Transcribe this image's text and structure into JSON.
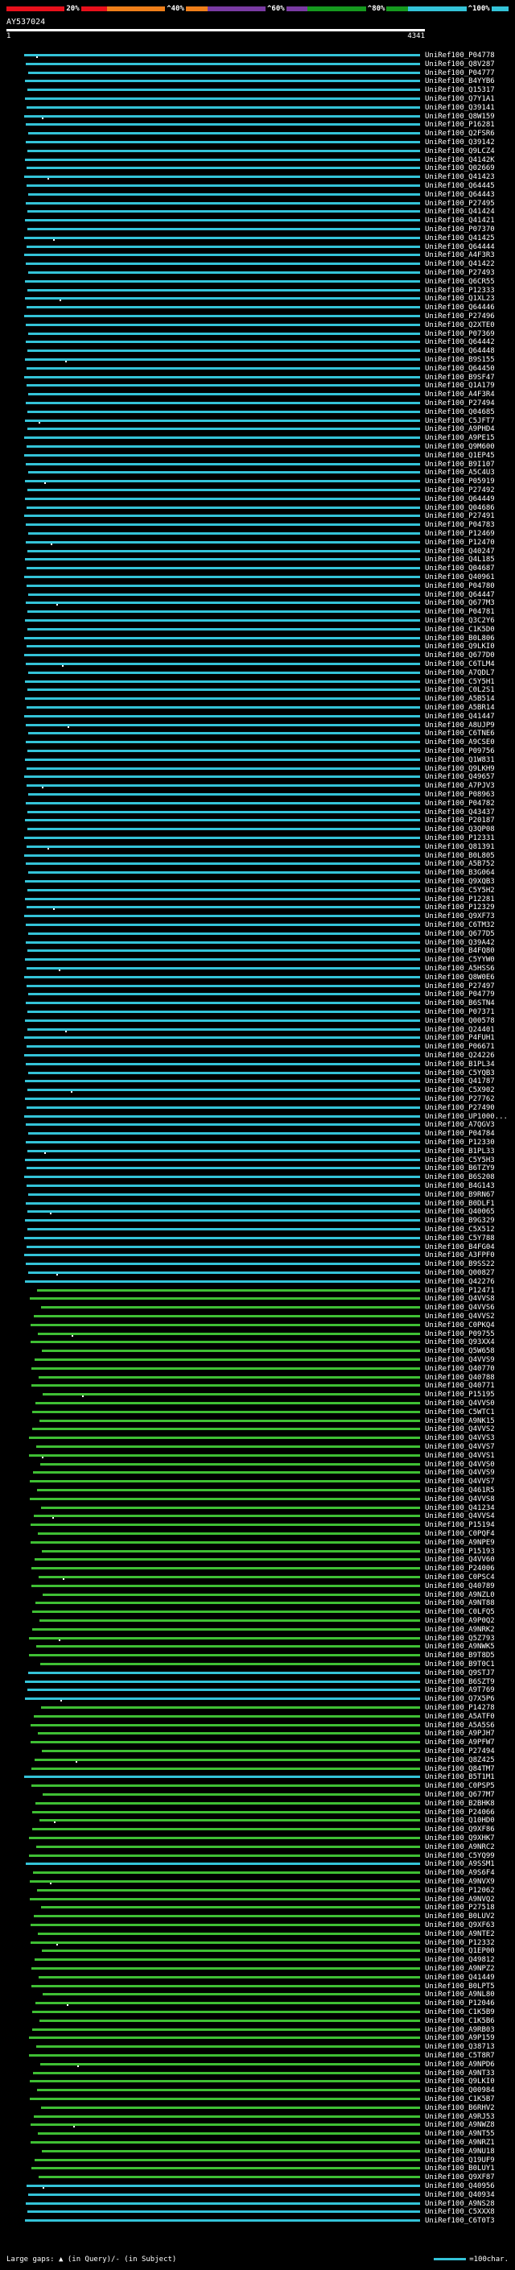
{
  "scale": {
    "labels": [
      "20%",
      "^40%",
      "^60%",
      "^80%",
      "^100%"
    ],
    "colors": [
      "#e8101b",
      "#ef7f1a",
      "#7a3ba3",
      "#169a1f",
      "#34c3d8"
    ]
  },
  "query": {
    "name": "AY537024",
    "start": "1",
    "end": "4341"
  },
  "legend": {
    "gaps_label": "Large gaps: ▲ (in Query)/- (in Subject)",
    "scale_label": "=100char."
  },
  "hits": [
    {
      "label": "UniRef100_P04778",
      "type": "cyan"
    },
    {
      "label": "UniRef100_Q8V287",
      "type": "cyan"
    },
    {
      "label": "UniRef100_P04777",
      "type": "cyan"
    },
    {
      "label": "UniRef100_B4YYB6",
      "type": "cyan"
    },
    {
      "label": "UniRef100_Q15317",
      "type": "cyan"
    },
    {
      "label": "UniRef100_Q7Y1A1",
      "type": "cyan"
    },
    {
      "label": "UniRef100_Q39141",
      "type": "cyan"
    },
    {
      "label": "UniRef100_Q8W159",
      "type": "cyan"
    },
    {
      "label": "UniRef100_P16281",
      "type": "cyan"
    },
    {
      "label": "UniRef100_Q2FSR6",
      "type": "cyan"
    },
    {
      "label": "UniRef100_Q39142",
      "type": "cyan"
    },
    {
      "label": "UniRef100_Q9LCZ4",
      "type": "cyan"
    },
    {
      "label": "UniRef100_Q4142K",
      "type": "cyan"
    },
    {
      "label": "UniRef100_Q02669",
      "type": "cyan"
    },
    {
      "label": "UniRef100_Q41423",
      "type": "cyan"
    },
    {
      "label": "UniRef100_Q64445",
      "type": "cyan"
    },
    {
      "label": "UniRef100_Q64443",
      "type": "cyan"
    },
    {
      "label": "UniRef100_P27495",
      "type": "cyan"
    },
    {
      "label": "UniRef100_Q41424",
      "type": "cyan"
    },
    {
      "label": "UniRef100_Q41421",
      "type": "cyan"
    },
    {
      "label": "UniRef100_P07370",
      "type": "cyan"
    },
    {
      "label": "UniRef100_Q41425",
      "type": "cyan"
    },
    {
      "label": "UniRef100_Q64444",
      "type": "cyan"
    },
    {
      "label": "UniRef100_A4F3R3",
      "type": "cyan"
    },
    {
      "label": "UniRef100_Q41422",
      "type": "cyan"
    },
    {
      "label": "UniRef100_P27493",
      "type": "cyan"
    },
    {
      "label": "UniRef100_Q6CR55",
      "type": "cyan"
    },
    {
      "label": "UniRef100_P12333",
      "type": "cyan"
    },
    {
      "label": "UniRef100_Q1XL23",
      "type": "cyan"
    },
    {
      "label": "UniRef100_Q64446",
      "type": "cyan"
    },
    {
      "label": "UniRef100_P27496",
      "type": "cyan"
    },
    {
      "label": "UniRef100_Q2XTE0",
      "type": "cyan"
    },
    {
      "label": "UniRef100_P07369",
      "type": "cyan"
    },
    {
      "label": "UniRef100_Q64442",
      "type": "cyan"
    },
    {
      "label": "UniRef100_Q64448",
      "type": "cyan"
    },
    {
      "label": "UniRef100_B9S155",
      "type": "cyan"
    },
    {
      "label": "UniRef100_Q64450",
      "type": "cyan"
    },
    {
      "label": "UniRef100_B9SF47",
      "type": "cyan"
    },
    {
      "label": "UniRef100_Q1A179",
      "type": "cyan"
    },
    {
      "label": "UniRef100_A4F3R4",
      "type": "cyan"
    },
    {
      "label": "UniRef100_P27494",
      "type": "cyan"
    },
    {
      "label": "UniRef100_Q04685",
      "type": "cyan"
    },
    {
      "label": "UniRef100_C5JFT7",
      "type": "cyan"
    },
    {
      "label": "UniRef100_A9PHD4",
      "type": "cyan"
    },
    {
      "label": "UniRef100_A9PE15",
      "type": "cyan"
    },
    {
      "label": "UniRef100_Q9M600",
      "type": "cyan"
    },
    {
      "label": "UniRef100_Q1EP45",
      "type": "cyan"
    },
    {
      "label": "UniRef100_B9I107",
      "type": "cyan"
    },
    {
      "label": "UniRef100_A5C4U3",
      "type": "cyan"
    },
    {
      "label": "UniRef100_P05919",
      "type": "cyan"
    },
    {
      "label": "UniRef100_P27492",
      "type": "cyan"
    },
    {
      "label": "UniRef100_Q64449",
      "type": "cyan"
    },
    {
      "label": "UniRef100_Q04686",
      "type": "cyan"
    },
    {
      "label": "UniRef100_P27491",
      "type": "cyan"
    },
    {
      "label": "UniRef100_P04783",
      "type": "cyan"
    },
    {
      "label": "UniRef100_P12469",
      "type": "cyan"
    },
    {
      "label": "UniRef100_P12470",
      "type": "cyan"
    },
    {
      "label": "UniRef100_Q40247",
      "type": "cyan"
    },
    {
      "label": "UniRef100_Q4L185",
      "type": "cyan"
    },
    {
      "label": "UniRef100_Q04687",
      "type": "cyan"
    },
    {
      "label": "UniRef100_Q40961",
      "type": "cyan"
    },
    {
      "label": "UniRef100_P04780",
      "type": "cyan"
    },
    {
      "label": "UniRef100_Q64447",
      "type": "cyan"
    },
    {
      "label": "UniRef100_Q677M3",
      "type": "cyan"
    },
    {
      "label": "UniRef100_P04781",
      "type": "cyan"
    },
    {
      "label": "UniRef100_Q3C2Y6",
      "type": "cyan"
    },
    {
      "label": "UniRef100_C1K5D0",
      "type": "cyan"
    },
    {
      "label": "UniRef100_B0L806",
      "type": "cyan"
    },
    {
      "label": "UniRef100_Q9LKI0",
      "type": "cyan"
    },
    {
      "label": "UniRef100_Q677D0",
      "type": "cyan"
    },
    {
      "label": "UniRef100_C6TLM4",
      "type": "cyan"
    },
    {
      "label": "UniRef100_A7QDL7",
      "type": "cyan"
    },
    {
      "label": "UniRef100_C5Y5H1",
      "type": "cyan"
    },
    {
      "label": "UniRef100_C0L2S1",
      "type": "cyan"
    },
    {
      "label": "UniRef100_A5B514",
      "type": "cyan"
    },
    {
      "label": "UniRef100_A5BR14",
      "type": "cyan"
    },
    {
      "label": "UniRef100_Q41447",
      "type": "cyan"
    },
    {
      "label": "UniRef100_A8UJP9",
      "type": "cyan"
    },
    {
      "label": "UniRef100_C6TNE6",
      "type": "cyan"
    },
    {
      "label": "UniRef100_A9CSE0",
      "type": "cyan"
    },
    {
      "label": "UniRef100_P09756",
      "type": "cyan"
    },
    {
      "label": "UniRef100_Q1W831",
      "type": "cyan"
    },
    {
      "label": "UniRef100_Q9LKH9",
      "type": "cyan"
    },
    {
      "label": "UniRef100_Q49657",
      "type": "cyan"
    },
    {
      "label": "UniRef100_A7PJV3",
      "type": "cyan"
    },
    {
      "label": "UniRef100_P08963",
      "type": "cyan"
    },
    {
      "label": "UniRef100_P04782",
      "type": "cyan"
    },
    {
      "label": "UniRef100_Q43437",
      "type": "cyan"
    },
    {
      "label": "UniRef100_P20187",
      "type": "cyan"
    },
    {
      "label": "UniRef100_Q3QP08",
      "type": "cyan"
    },
    {
      "label": "UniRef100_P12331",
      "type": "cyan"
    },
    {
      "label": "UniRef100_Q81391",
      "type": "cyan"
    },
    {
      "label": "UniRef100_B0L805",
      "type": "cyan"
    },
    {
      "label": "UniRef100_A5B752",
      "type": "cyan"
    },
    {
      "label": "UniRef100_B3G064",
      "type": "cyan"
    },
    {
      "label": "UniRef100_Q9XQB3",
      "type": "cyan"
    },
    {
      "label": "UniRef100_C5Y5H2",
      "type": "cyan"
    },
    {
      "label": "UniRef100_P12281",
      "type": "cyan"
    },
    {
      "label": "UniRef100_P12329",
      "type": "cyan"
    },
    {
      "label": "UniRef100_Q9XF73",
      "type": "cyan"
    },
    {
      "label": "UniRef100_C6TM32",
      "type": "cyan"
    },
    {
      "label": "UniRef100_Q677D5",
      "type": "cyan"
    },
    {
      "label": "UniRef100_Q39A42",
      "type": "cyan"
    },
    {
      "label": "UniRef100_B4FQ80",
      "type": "cyan"
    },
    {
      "label": "UniRef100_C5YYW0",
      "type": "cyan"
    },
    {
      "label": "UniRef100_A5HSS6",
      "type": "cyan"
    },
    {
      "label": "UniRef100_Q8W0E6",
      "type": "cyan"
    },
    {
      "label": "UniRef100_P27497",
      "type": "cyan"
    },
    {
      "label": "UniRef100_P04779",
      "type": "cyan"
    },
    {
      "label": "UniRef100_B6STN4",
      "type": "cyan"
    },
    {
      "label": "UniRef100_P07371",
      "type": "cyan"
    },
    {
      "label": "UniRef100_Q00578",
      "type": "cyan"
    },
    {
      "label": "UniRef100_Q24401",
      "type": "cyan"
    },
    {
      "label": "UniRef100_P4FUH1",
      "type": "cyan"
    },
    {
      "label": "UniRef100_P06671",
      "type": "cyan"
    },
    {
      "label": "UniRef100_Q24226",
      "type": "cyan"
    },
    {
      "label": "UniRef100_B1PL34",
      "type": "cyan"
    },
    {
      "label": "UniRef100_C5YQB3",
      "type": "cyan"
    },
    {
      "label": "UniRef100_Q41787",
      "type": "cyan"
    },
    {
      "label": "UniRef100_C5X902",
      "type": "cyan"
    },
    {
      "label": "UniRef100_P27762",
      "type": "cyan"
    },
    {
      "label": "UniRef100_P27490",
      "type": "cyan"
    },
    {
      "label": "UniRef100_UP1000...",
      "type": "cyan"
    },
    {
      "label": "UniRef100_A7QGV3",
      "type": "cyan"
    },
    {
      "label": "UniRef100_P04784",
      "type": "cyan"
    },
    {
      "label": "UniRef100_P12330",
      "type": "cyan"
    },
    {
      "label": "UniRef100_B1PL33",
      "type": "cyan"
    },
    {
      "label": "UniRef100_C5Y5H3",
      "type": "cyan"
    },
    {
      "label": "UniRef100_B6TZY9",
      "type": "cyan"
    },
    {
      "label": "UniRef100_B6S208",
      "type": "cyan"
    },
    {
      "label": "UniRef100_B4G143",
      "type": "cyan"
    },
    {
      "label": "UniRef100_B9RN67",
      "type": "cyan"
    },
    {
      "label": "UniRef100_B0DLF1",
      "type": "cyan"
    },
    {
      "label": "UniRef100_Q40065",
      "type": "cyan"
    },
    {
      "label": "UniRef100_B9G329",
      "type": "cyan"
    },
    {
      "label": "UniRef100_C5X512",
      "type": "cyan"
    },
    {
      "label": "UniRef100_C5Y788",
      "type": "cyan"
    },
    {
      "label": "UniRef100_B4FG04",
      "type": "cyan"
    },
    {
      "label": "UniRef100_A3FPF0",
      "type": "cyan"
    },
    {
      "label": "UniRef100_B9SS22",
      "type": "cyan"
    },
    {
      "label": "UniRef100_Q00827",
      "type": "cyan"
    },
    {
      "label": "UniRef100_Q42276",
      "type": "cyan"
    },
    {
      "label": "UniRef100_P12471",
      "type": "green"
    },
    {
      "label": "UniRef100_Q4VVS8",
      "type": "green"
    },
    {
      "label": "UniRef100_Q4VVS6",
      "type": "green"
    },
    {
      "label": "UniRef100_Q4VVS2",
      "type": "green"
    },
    {
      "label": "UniRef100_C0PKQ4",
      "type": "green"
    },
    {
      "label": "UniRef100_P09755",
      "type": "green"
    },
    {
      "label": "UniRef100_Q93XX4",
      "type": "green"
    },
    {
      "label": "UniRef100_Q5W658",
      "type": "green"
    },
    {
      "label": "UniRef100_Q4VVS9",
      "type": "green"
    },
    {
      "label": "UniRef100_Q40770",
      "type": "green"
    },
    {
      "label": "UniRef100_Q40788",
      "type": "green"
    },
    {
      "label": "UniRef100_Q40771",
      "type": "green"
    },
    {
      "label": "UniRef100_P15195",
      "type": "green"
    },
    {
      "label": "UniRef100_Q4VVS0",
      "type": "green"
    },
    {
      "label": "UniRef100_C5WTC1",
      "type": "green"
    },
    {
      "label": "UniRef100_A9NK15",
      "type": "green"
    },
    {
      "label": "UniRef100_Q4VVS2",
      "type": "green"
    },
    {
      "label": "UniRef100_Q4VVS3",
      "type": "green"
    },
    {
      "label": "UniRef100_Q4VVS7",
      "type": "green"
    },
    {
      "label": "UniRef100_Q4VVS1",
      "type": "green"
    },
    {
      "label": "UniRef100_Q4VVS0",
      "type": "green"
    },
    {
      "label": "UniRef100_Q4VVS9",
      "type": "green"
    },
    {
      "label": "UniRef100_Q4VVS7",
      "type": "green"
    },
    {
      "label": "UniRef100_Q461R5",
      "type": "green"
    },
    {
      "label": "UniRef100_Q4VVS8",
      "type": "green"
    },
    {
      "label": "UniRef100_Q41234",
      "type": "green"
    },
    {
      "label": "UniRef100_Q4VVS4",
      "type": "green"
    },
    {
      "label": "UniRef100_P15194",
      "type": "green"
    },
    {
      "label": "UniRef100_C0PQF4",
      "type": "green"
    },
    {
      "label": "UniRef100_A9NPE9",
      "type": "green"
    },
    {
      "label": "UniRef100_P15193",
      "type": "green"
    },
    {
      "label": "UniRef100_Q4VV60",
      "type": "green"
    },
    {
      "label": "UniRef100_P24006",
      "type": "green"
    },
    {
      "label": "UniRef100_C0PSC4",
      "type": "green"
    },
    {
      "label": "UniRef100_Q40789",
      "type": "green"
    },
    {
      "label": "UniRef100_A9NZL0",
      "type": "green"
    },
    {
      "label": "UniRef100_A9NT88",
      "type": "green"
    },
    {
      "label": "UniRef100_C0LFQ5",
      "type": "green"
    },
    {
      "label": "UniRef100_A9P0Q2",
      "type": "green"
    },
    {
      "label": "UniRef100_A9NRK2",
      "type": "green"
    },
    {
      "label": "UniRef100_Q5Z793",
      "type": "green"
    },
    {
      "label": "UniRef100_A9NWK5",
      "type": "green"
    },
    {
      "label": "UniRef100_B9T8D5",
      "type": "green"
    },
    {
      "label": "UniRef100_B9T0C1",
      "type": "green"
    },
    {
      "label": "UniRef100_Q9STJ7",
      "type": "cyan"
    },
    {
      "label": "UniRef100_B6SZT9",
      "type": "cyan"
    },
    {
      "label": "UniRef100_A9T769",
      "type": "cyan"
    },
    {
      "label": "UniRef100_Q7X5P6",
      "type": "cyan"
    },
    {
      "label": "UniRef100_P14278",
      "type": "green"
    },
    {
      "label": "UniRef100_A5ATF0",
      "type": "green"
    },
    {
      "label": "UniRef100_A5A5S6",
      "type": "green"
    },
    {
      "label": "UniRef100_A9PJH7",
      "type": "green"
    },
    {
      "label": "UniRef100_A9PFW7",
      "type": "green"
    },
    {
      "label": "UniRef100_P27494",
      "type": "green"
    },
    {
      "label": "UniRef100_Q8Z425",
      "type": "green"
    },
    {
      "label": "UniRef100_Q84TM7",
      "type": "green"
    },
    {
      "label": "UniRef100_B5T1M1",
      "type": "cyan"
    },
    {
      "label": "UniRef100_C0PSP5",
      "type": "green"
    },
    {
      "label": "UniRef100_Q677M7",
      "type": "green"
    },
    {
      "label": "UniRef100_B2BHK8",
      "type": "green"
    },
    {
      "label": "UniRef100_P24066",
      "type": "green"
    },
    {
      "label": "UniRef100_Q10HD0",
      "type": "green"
    },
    {
      "label": "UniRef100_Q9XF86",
      "type": "green"
    },
    {
      "label": "UniRef100_Q9XHK7",
      "type": "green"
    },
    {
      "label": "UniRef100_A9NRC2",
      "type": "green"
    },
    {
      "label": "UniRef100_C5YQ99",
      "type": "green"
    },
    {
      "label": "UniRef100_A9SSM1",
      "type": "cyan"
    },
    {
      "label": "UniRef100_A9S6F4",
      "type": "green"
    },
    {
      "label": "UniRef100_A9NVX9",
      "type": "green"
    },
    {
      "label": "UniRef100_P12062",
      "type": "green"
    },
    {
      "label": "UniRef100_A9NVQ2",
      "type": "green"
    },
    {
      "label": "UniRef100_P27518",
      "type": "green"
    },
    {
      "label": "UniRef100_B0LUV2",
      "type": "green"
    },
    {
      "label": "UniRef100_Q9XF63",
      "type": "green"
    },
    {
      "label": "UniRef100_A9NTE2",
      "type": "green"
    },
    {
      "label": "UniRef100_P12332",
      "type": "green"
    },
    {
      "label": "UniRef100_Q1EP00",
      "type": "green"
    },
    {
      "label": "UniRef100_Q49812",
      "type": "green"
    },
    {
      "label": "UniRef100_A9NPZ2",
      "type": "green"
    },
    {
      "label": "UniRef100_Q41449",
      "type": "green"
    },
    {
      "label": "UniRef100_B0LPT5",
      "type": "green"
    },
    {
      "label": "UniRef100_A9NL80",
      "type": "green"
    },
    {
      "label": "UniRef100_P12046",
      "type": "green"
    },
    {
      "label": "UniRef100_C1K5B9",
      "type": "green"
    },
    {
      "label": "UniRef100_C1K5B6",
      "type": "green"
    },
    {
      "label": "UniRef100_A9RB03",
      "type": "green"
    },
    {
      "label": "UniRef100_A9P159",
      "type": "green"
    },
    {
      "label": "UniRef100_Q38713",
      "type": "green"
    },
    {
      "label": "UniRef100_C5T8R7",
      "type": "green"
    },
    {
      "label": "UniRef100_A9NPD6",
      "type": "green"
    },
    {
      "label": "UniRef100_A9NT33",
      "type": "green"
    },
    {
      "label": "UniRef100_Q9LKI0",
      "type": "green"
    },
    {
      "label": "UniRef100_Q00984",
      "type": "green"
    },
    {
      "label": "UniRef100_C1K5B7",
      "type": "green"
    },
    {
      "label": "UniRef100_B6RHV2",
      "type": "green"
    },
    {
      "label": "UniRef100_A9RJ53",
      "type": "green"
    },
    {
      "label": "UniRef100_A9NWZ8",
      "type": "green"
    },
    {
      "label": "UniRef100_A9NT55",
      "type": "green"
    },
    {
      "label": "UniRef100_A9NRZ1",
      "type": "green"
    },
    {
      "label": "UniRef100_A9NU18",
      "type": "green"
    },
    {
      "label": "UniRef100_Q19UF9",
      "type": "green"
    },
    {
      "label": "UniRef100_B0LUY1",
      "type": "green"
    },
    {
      "label": "UniRef100_Q9XF87",
      "type": "green"
    },
    {
      "label": "UniRef100_Q40956",
      "type": "cyan"
    },
    {
      "label": "UniRef100_Q40934",
      "type": "cyan"
    },
    {
      "label": "UniRef100_A9NS28",
      "type": "cyan"
    },
    {
      "label": "UniRef100_C5XXX8",
      "type": "cyan"
    },
    {
      "label": "UniRef100_C6T0T3",
      "type": "cyan"
    }
  ]
}
